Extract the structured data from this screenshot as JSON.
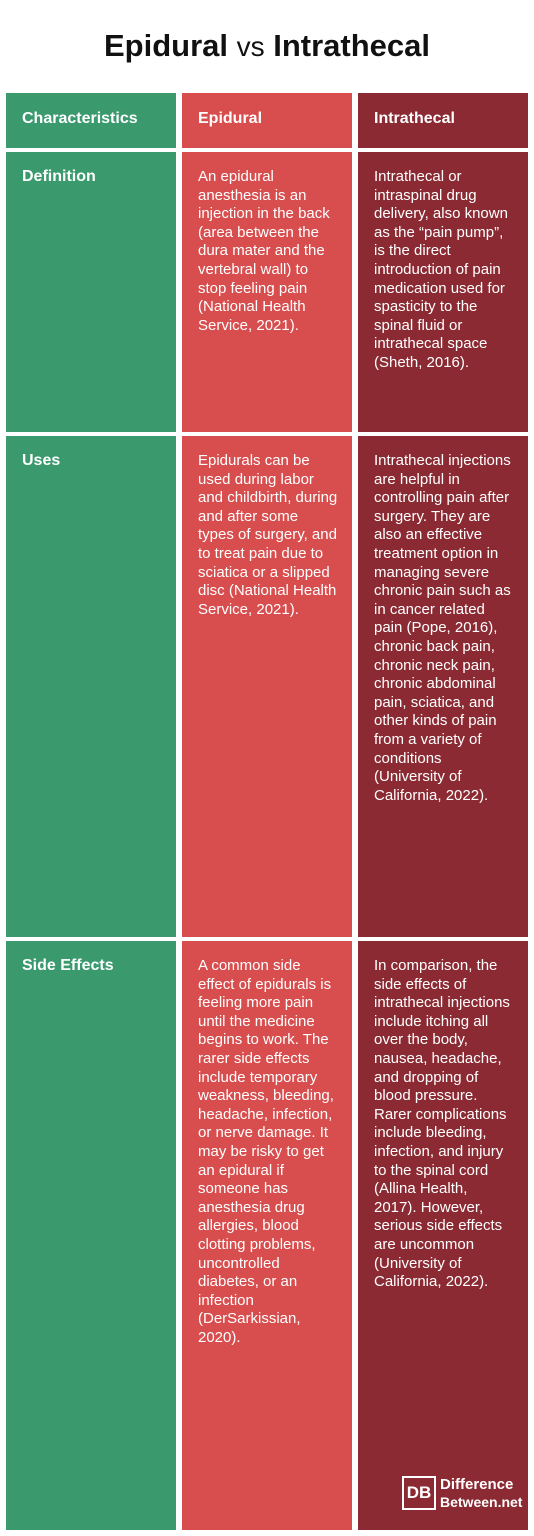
{
  "title": {
    "left": "Epidural",
    "vs": "vs",
    "right": "Intrathecal"
  },
  "table": {
    "header": [
      "Characteristics",
      "Epidural",
      "Intrathecal"
    ],
    "rows": [
      [
        "Definition",
        "An epidural anesthesia is an injection in the back (area between the dura mater and the vertebral wall) to stop feeling pain (National Health Service, 2021).",
        "Intrathecal or intraspinal drug delivery, also known as the “pain pump”, is the direct introduction of pain medication used for spasticity to the spinal fluid or intrathecal space (Sheth, 2016)."
      ],
      [
        "Uses",
        "Epidurals can be used during labor and childbirth, during and after some types of surgery, and to treat pain due to sciatica or a slipped disc (National Health Service, 2021).",
        "Intrathecal injections are helpful in controlling pain after surgery. They are also an effective treatment option in managing severe chronic pain such as in cancer related pain (Pope, 2016), chronic back pain, chronic neck pain, chronic abdominal pain, sciatica, and other kinds of pain from a variety of conditions (University of California, 2022)."
      ],
      [
        "Side Effects",
        "A common side effect of epidurals is feeling more pain until the medicine begins to work. The rarer side effects include temporary weakness, bleeding, headache, infection, or nerve damage. It may be risky to get an epidural if someone has anesthesia drug allergies, blood clotting problems, uncontrolled diabetes, or an infection (DerSarkissian, 2020).",
        "In comparison, the side effects of intrathecal injections include itching all over the body, nausea, headache, and dropping of blood pressure. Rarer complications include bleeding, infection, and injury to the spinal cord (Allina Health, 2017). However, serious side effects are uncommon (University of California, 2022)."
      ]
    ]
  },
  "logo": {
    "mark": "DB",
    "line1": "Difference",
    "line2": "Between.net"
  }
}
